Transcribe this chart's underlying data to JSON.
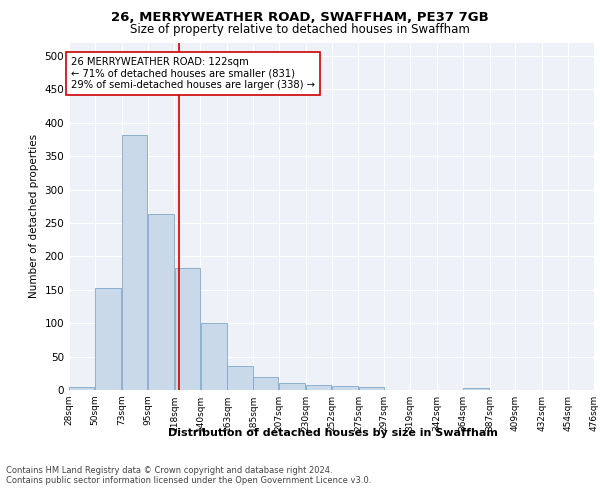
{
  "title": "26, MERRYWEATHER ROAD, SWAFFHAM, PE37 7GB",
  "subtitle": "Size of property relative to detached houses in Swaffham",
  "xlabel": "Distribution of detached houses by size in Swaffham",
  "ylabel": "Number of detached properties",
  "property_size": 122,
  "annotation_line1": "26 MERRYWEATHER ROAD: 122sqm",
  "annotation_line2": "← 71% of detached houses are smaller (831)",
  "annotation_line3": "29% of semi-detached houses are larger (338) →",
  "bin_edges": [
    28,
    50,
    73,
    95,
    118,
    140,
    163,
    185,
    207,
    230,
    252,
    275,
    297,
    319,
    342,
    364,
    387,
    409,
    432,
    454,
    476
  ],
  "bar_values": [
    5,
    153,
    381,
    263,
    183,
    100,
    36,
    20,
    10,
    8,
    6,
    4,
    0,
    0,
    0,
    3,
    0,
    0,
    0,
    0
  ],
  "bar_color": "#c9d9ea",
  "bar_edge_color": "#7fa8c9",
  "vline_color": "#cc0000",
  "vline_x": 122,
  "ylim": [
    0,
    520
  ],
  "yticks": [
    0,
    50,
    100,
    150,
    200,
    250,
    300,
    350,
    400,
    450,
    500
  ],
  "background_color": "#eef2f8",
  "footer_line1": "Contains HM Land Registry data © Crown copyright and database right 2024.",
  "footer_line2": "Contains public sector information licensed under the Open Government Licence v3.0."
}
